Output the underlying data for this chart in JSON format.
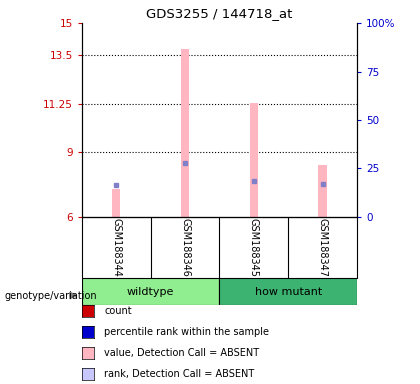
{
  "title": "GDS3255 / 144718_at",
  "samples": [
    "GSM188344",
    "GSM188346",
    "GSM188345",
    "GSM188347"
  ],
  "group_labels": [
    "wildtype",
    "how mutant"
  ],
  "group_split": 2,
  "bar_bg_color": "#cccccc",
  "wildtype_green": "#90ee90",
  "howmutant_green": "#3cb371",
  "ylim_left": [
    6,
    15
  ],
  "ylim_right": [
    0,
    100
  ],
  "yticks_left": [
    6,
    9,
    11.25,
    13.5,
    15
  ],
  "ytick_labels_left": [
    "6",
    "9",
    "11.25",
    "13.5",
    "15"
  ],
  "yticks_right": [
    0,
    25,
    50,
    75,
    100
  ],
  "ytick_labels_right": [
    "0",
    "25",
    "50",
    "75",
    "100%"
  ],
  "pink_bar_values": [
    7.3,
    13.8,
    11.3,
    8.4
  ],
  "blue_marker_values": [
    7.5,
    8.5,
    7.65,
    7.55
  ],
  "bar_width": 0.12,
  "pink_bar_color": "#ffb6c1",
  "blue_marker_color": "#8080c8",
  "legend_items": [
    {
      "color": "#cc0000",
      "label": "count"
    },
    {
      "color": "#0000cc",
      "label": "percentile rank within the sample"
    },
    {
      "color": "#ffb6c1",
      "label": "value, Detection Call = ABSENT"
    },
    {
      "color": "#c8c8ff",
      "label": "rank, Detection Call = ABSENT"
    }
  ],
  "genotype_label": "genotype/variation",
  "left_axis_color": "#cc0000",
  "right_axis_color": "#0000cc",
  "background_color": "#ffffff"
}
